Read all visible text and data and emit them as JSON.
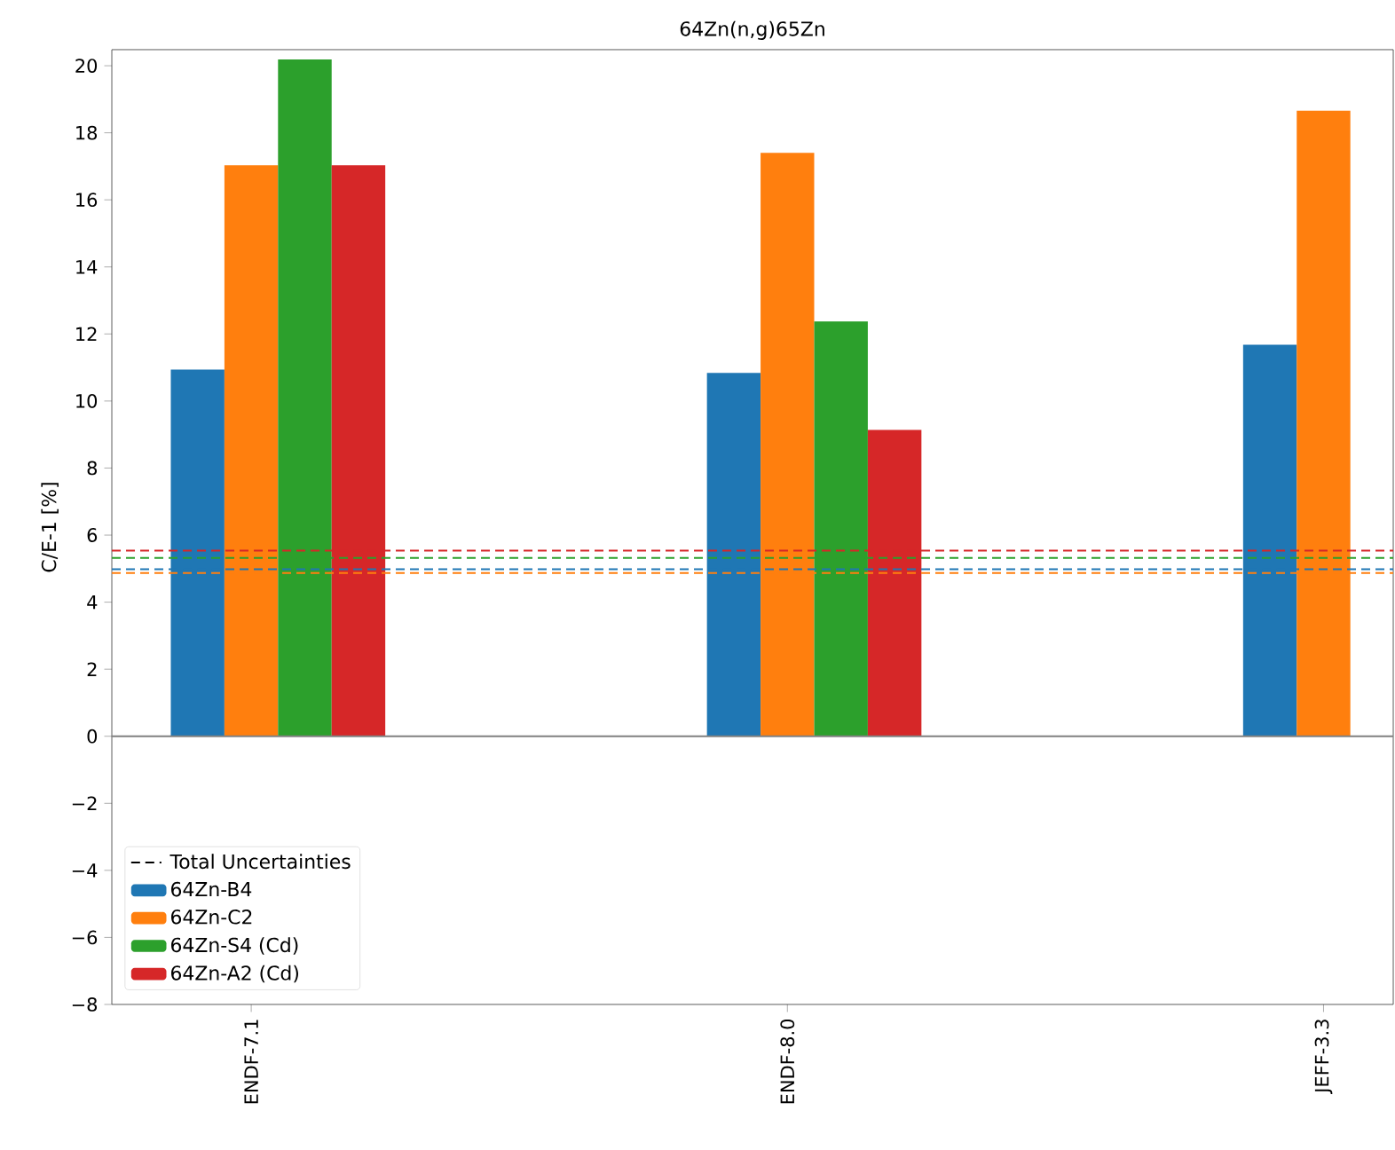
{
  "chart_data": {
    "type": "bar",
    "title": "64Zn(n,g)65Zn",
    "ylabel": "C/E-1 [%]",
    "categories": [
      "ENDF-7.1",
      "ENDF-8.0",
      "JEFF-3.3"
    ],
    "series": [
      {
        "name": "64Zn-B4",
        "color": "#1f77b4",
        "values": [
          10.94,
          10.84,
          11.68
        ]
      },
      {
        "name": "64Zn-C2",
        "color": "#ff7f0e",
        "values": [
          17.03,
          17.4,
          18.66
        ]
      },
      {
        "name": "64Zn-S4 (Cd)",
        "color": "#2ca02c",
        "values": [
          20.19,
          12.37,
          null
        ]
      },
      {
        "name": "64Zn-A2 (Cd)",
        "color": "#d62728",
        "values": [
          17.03,
          9.14,
          null
        ]
      }
    ],
    "ylim": [
      -8,
      20.48
    ],
    "yticks": [
      {
        "value": -8,
        "label": "−8"
      },
      {
        "value": -6,
        "label": "−6"
      },
      {
        "value": -4,
        "label": "−4"
      },
      {
        "value": -2,
        "label": "−2"
      },
      0,
      2,
      4,
      6,
      8,
      10,
      12,
      14,
      16,
      18,
      20
    ],
    "ref_lines": [
      {
        "axis": "y",
        "value": 4.98,
        "color": "#1f77b4",
        "line_style": "dashed"
      },
      {
        "axis": "y",
        "value": 4.87,
        "color": "#ff7f0e",
        "line_style": "dashed"
      },
      {
        "axis": "y",
        "value": 5.32,
        "color": "#2ca02c",
        "line_style": "dashed"
      },
      {
        "axis": "y",
        "value": 5.54,
        "color": "#d62728",
        "line_style": "dashed"
      },
      {
        "axis": "y",
        "value": 0,
        "color": "#808080",
        "line_style": "solid"
      }
    ],
    "annotations": [
      "Total Uncertainties"
    ],
    "grid": false,
    "legend": "bottom left"
  }
}
